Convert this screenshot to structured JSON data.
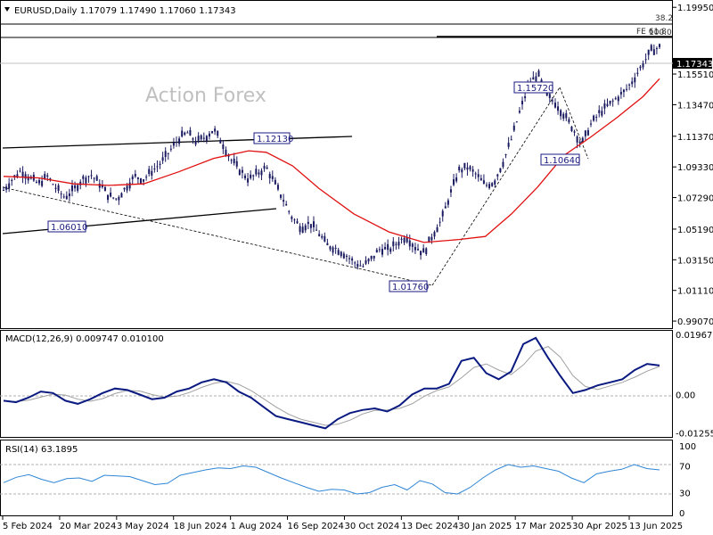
{
  "header": {
    "symbol_line": "EURUSD,Daily  1.17079 1.17490 1.17060 1.17343",
    "dropdown_icon": "triangle-down-icon"
  },
  "watermark": "Action Forex",
  "chart_data": [
    {
      "type": "candlestick",
      "title": "EURUSD,Daily",
      "ohlc_label": "1.17079 1.17490 1.17060 1.17343",
      "y_ticks": [
        "1.19950",
        "1.17343",
        "1.15510",
        "1.13470",
        "1.11370",
        "1.09330",
        "1.07290",
        "1.05190",
        "1.03150",
        "1.01110",
        "0.99070"
      ],
      "ylim": [
        0.986,
        1.202
      ],
      "current_price": "1.17343",
      "x_ticks": [
        "5 Feb 2024",
        "20 Mar 2024",
        "3 May 2024",
        "18 Jun 2024",
        "1 Aug 2024",
        "16 Sep 2024",
        "30 Oct 2024",
        "13 Dec 2024",
        "30 Jan 2025",
        "17 Mar 2025",
        "30 Apr 2025",
        "13 Jun 2025"
      ],
      "price_path": [
        [
          0,
          1.078
        ],
        [
          10,
          1.085
        ],
        [
          20,
          1.091
        ],
        [
          30,
          1.086
        ],
        [
          40,
          1.082
        ],
        [
          50,
          1.087
        ],
        [
          60,
          1.079
        ],
        [
          70,
          1.073
        ],
        [
          80,
          1.078
        ],
        [
          90,
          1.085
        ],
        [
          100,
          1.088
        ],
        [
          110,
          1.082
        ],
        [
          120,
          1.074
        ],
        [
          130,
          1.072
        ],
        [
          140,
          1.08
        ],
        [
          150,
          1.087
        ],
        [
          160,
          1.085
        ],
        [
          170,
          1.091
        ],
        [
          180,
          1.096
        ],
        [
          190,
          1.104
        ],
        [
          200,
          1.112
        ],
        [
          210,
          1.116
        ],
        [
          220,
          1.11
        ],
        [
          230,
          1.113
        ],
        [
          240,
          1.118
        ],
        [
          250,
          1.109
        ],
        [
          260,
          1.098
        ],
        [
          270,
          1.091
        ],
        [
          280,
          1.085
        ],
        [
          290,
          1.089
        ],
        [
          300,
          1.093
        ],
        [
          310,
          1.082
        ],
        [
          320,
          1.071
        ],
        [
          330,
          1.059
        ],
        [
          340,
          1.053
        ],
        [
          350,
          1.056
        ],
        [
          360,
          1.049
        ],
        [
          370,
          1.041
        ],
        [
          380,
          1.039
        ],
        [
          390,
          1.035
        ],
        [
          400,
          1.03
        ],
        [
          410,
          1.027
        ],
        [
          420,
          1.032
        ],
        [
          430,
          1.039
        ],
        [
          440,
          1.038
        ],
        [
          450,
          1.043
        ],
        [
          460,
          1.047
        ],
        [
          470,
          1.04
        ],
        [
          480,
          1.036
        ],
        [
          490,
          1.048
        ],
        [
          500,
          1.058
        ],
        [
          510,
          1.075
        ],
        [
          520,
          1.091
        ],
        [
          530,
          1.093
        ],
        [
          540,
          1.088
        ],
        [
          550,
          1.081
        ],
        [
          560,
          1.083
        ],
        [
          570,
          1.096
        ],
        [
          580,
          1.112
        ],
        [
          590,
          1.131
        ],
        [
          600,
          1.148
        ],
        [
          610,
          1.155
        ],
        [
          620,
          1.141
        ],
        [
          630,
          1.136
        ],
        [
          640,
          1.128
        ],
        [
          650,
          1.119
        ],
        [
          660,
          1.108
        ],
        [
          670,
          1.121
        ],
        [
          680,
          1.129
        ],
        [
          690,
          1.134
        ],
        [
          700,
          1.139
        ],
        [
          710,
          1.144
        ],
        [
          720,
          1.152
        ],
        [
          730,
          1.162
        ],
        [
          740,
          1.171
        ],
        [
          749,
          1.173
        ]
      ],
      "moving_average_path": [
        [
          0,
          1.087
        ],
        [
          40,
          1.086
        ],
        [
          80,
          1.082
        ],
        [
          120,
          1.081
        ],
        [
          160,
          1.082
        ],
        [
          200,
          1.09
        ],
        [
          240,
          1.099
        ],
        [
          280,
          1.104
        ],
        [
          300,
          1.103
        ],
        [
          330,
          1.094
        ],
        [
          360,
          1.079
        ],
        [
          400,
          1.062
        ],
        [
          440,
          1.05
        ],
        [
          480,
          1.043
        ],
        [
          520,
          1.045
        ],
        [
          550,
          1.047
        ],
        [
          580,
          1.062
        ],
        [
          610,
          1.08
        ],
        [
          640,
          1.101
        ],
        [
          670,
          1.113
        ],
        [
          700,
          1.126
        ],
        [
          730,
          1.14
        ],
        [
          749,
          1.152
        ]
      ],
      "annotations": [
        {
          "label": "1.12130",
          "value": 1.1213
        },
        {
          "label": "1.06010",
          "value": 1.0601
        },
        {
          "label": "1.01760",
          "value": 1.0176
        },
        {
          "label": "1.15720",
          "value": 1.1572
        },
        {
          "label": "1.10640",
          "value": 1.1064
        }
      ],
      "fibonacci_labels": [
        "38.2",
        "FE 61.8",
        "100.0"
      ]
    },
    {
      "type": "line",
      "title": "MACD(12,26,9) 0.009747 0.010100",
      "y_ticks": [
        "0.019679",
        "0.00",
        "-0.012552"
      ],
      "ylim": [
        -0.0135,
        0.0205
      ],
      "series": [
        {
          "name": "MACD",
          "values": [
            -0.002,
            -0.0025,
            -0.001,
            0.001,
            0.0005,
            -0.002,
            -0.003,
            -0.0015,
            0.0005,
            0.002,
            0.0015,
            0.0,
            -0.0015,
            -0.001,
            0.001,
            0.002,
            0.004,
            0.005,
            0.004,
            0.001,
            -0.001,
            -0.004,
            -0.007,
            -0.008,
            -0.009,
            -0.01,
            -0.011,
            -0.008,
            -0.006,
            -0.005,
            -0.0045,
            -0.0055,
            -0.0035,
            0.0,
            0.002,
            0.002,
            0.0035,
            0.011,
            0.012,
            0.007,
            0.005,
            0.0075,
            0.0165,
            0.0185,
            0.012,
            0.006,
            0.0005,
            0.0015,
            0.003,
            0.004,
            0.005,
            0.008,
            0.01,
            0.0095
          ]
        }
      ]
    },
    {
      "type": "line",
      "title": "RSI(14) 63.1895",
      "y_ticks": [
        "100",
        "70",
        "30",
        "0"
      ],
      "ylim": [
        0,
        100
      ],
      "series": [
        {
          "name": "RSI",
          "values": [
            45,
            53,
            57,
            50,
            45,
            51,
            52,
            47,
            56,
            55,
            54,
            48,
            42,
            44,
            56,
            60,
            64,
            67,
            66,
            70,
            68,
            60,
            52,
            45,
            38,
            32,
            35,
            34,
            28,
            30,
            38,
            42,
            34,
            48,
            43,
            30,
            28,
            38,
            52,
            64,
            72,
            68,
            70,
            66,
            62,
            52,
            45,
            58,
            62,
            65,
            72,
            66,
            64
          ]
        }
      ]
    }
  ],
  "colors": {
    "candle": "#1a1a60",
    "moving_average": "#e01010",
    "macd": "#0a1a80",
    "signal": "#a0a0a0",
    "rsi": "#2e86d6",
    "grid_dash": "#b0b0b0"
  }
}
